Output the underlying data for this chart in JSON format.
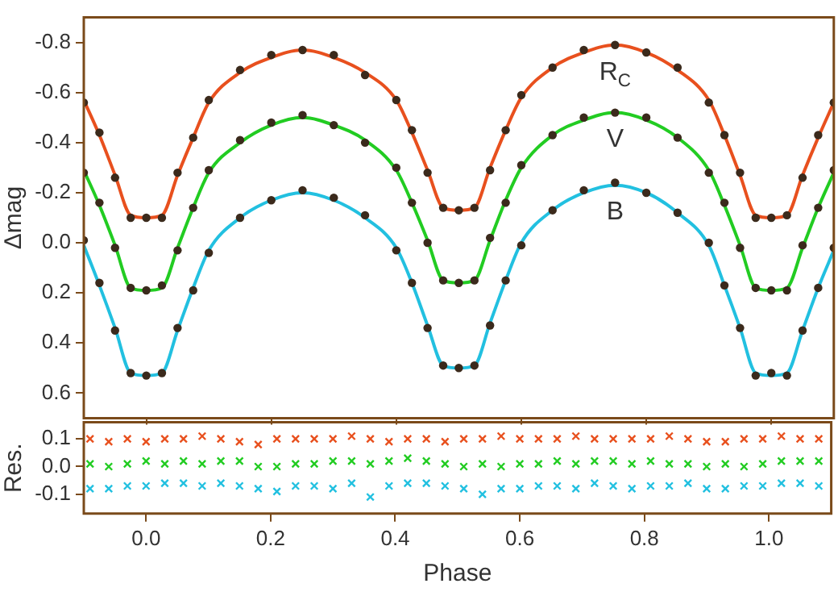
{
  "chart_data": [
    {
      "type": "line",
      "ylabel": "Δmag",
      "tick_labels": "y",
      "x": [
        -0.1,
        -0.075,
        -0.05,
        -0.025,
        0,
        0.025,
        0.05,
        0.075,
        0.1,
        0.15,
        0.2,
        0.25,
        0.3,
        0.35,
        0.4,
        0.425,
        0.45,
        0.475,
        0.5,
        0.525,
        0.55,
        0.575,
        0.6,
        0.65,
        0.7,
        0.75,
        0.8,
        0.85,
        0.9,
        0.925,
        0.95,
        0.975,
        1,
        1.025,
        1.05,
        1.075,
        1.1
      ],
      "xlim": [
        -0.1,
        1.1
      ],
      "xticks": [
        0,
        0.2,
        0.4,
        0.6,
        0.8,
        1
      ],
      "ylim": [
        0.7,
        -0.9
      ],
      "yticks": [
        -0.8,
        -0.6,
        -0.4,
        -0.2,
        {
          "value": 0,
          "label": "0.0"
        },
        0.2,
        0.4,
        0.6
      ],
      "series": [
        {
          "type": "scatter",
          "marker": "circle",
          "color": "#3b2a1c",
          "values": [
            -0.56,
            -0.44,
            -0.26,
            -0.1,
            -0.1,
            -0.1,
            -0.28,
            -0.42,
            -0.57,
            -0.69,
            -0.75,
            -0.77,
            -0.75,
            -0.67,
            -0.57,
            -0.45,
            -0.28,
            -0.14,
            -0.13,
            -0.14,
            -0.29,
            -0.45,
            -0.59,
            -0.7,
            -0.77,
            -0.79,
            -0.76,
            -0.7,
            -0.56,
            -0.43,
            -0.28,
            -0.1,
            -0.1,
            -0.11,
            -0.26,
            -0.43,
            -0.56
          ]
        },
        {
          "type": "scatter",
          "marker": "circle",
          "color": "#3b2a1c",
          "values": [
            -0.28,
            -0.16,
            0.02,
            0.18,
            0.19,
            0.17,
            0.03,
            -0.14,
            -0.29,
            -0.41,
            -0.48,
            -0.51,
            -0.47,
            -0.4,
            -0.3,
            -0.16,
            0.0,
            0.15,
            0.16,
            0.15,
            -0.02,
            -0.16,
            -0.31,
            -0.43,
            -0.5,
            -0.52,
            -0.5,
            -0.42,
            -0.28,
            -0.16,
            0.02,
            0.18,
            0.19,
            0.19,
            0.01,
            -0.14,
            -0.29
          ]
        },
        {
          "type": "scatter",
          "marker": "circle",
          "color": "#3b2a1c",
          "values": [
            -0.01,
            0.16,
            0.35,
            0.52,
            0.53,
            0.52,
            0.34,
            0.19,
            0.04,
            -0.1,
            -0.17,
            -0.21,
            -0.18,
            -0.11,
            0.03,
            0.16,
            0.34,
            0.49,
            0.5,
            0.49,
            0.33,
            0.15,
            0.01,
            -0.13,
            -0.21,
            -0.24,
            -0.2,
            -0.12,
            0.0,
            0.17,
            0.34,
            0.53,
            0.52,
            0.53,
            0.35,
            0.18,
            0.02
          ]
        },
        {
          "type": "line",
          "name": "R$_{C}$",
          "color": "#e8501e",
          "values": [
            -0.57,
            -0.43,
            -0.27,
            -0.11,
            -0.1,
            -0.11,
            -0.27,
            -0.42,
            -0.56,
            -0.68,
            -0.74,
            -0.77,
            -0.74,
            -0.68,
            -0.57,
            -0.44,
            -0.29,
            -0.14,
            -0.13,
            -0.14,
            -0.3,
            -0.45,
            -0.58,
            -0.7,
            -0.76,
            -0.79,
            -0.76,
            -0.69,
            -0.57,
            -0.43,
            -0.27,
            -0.11,
            -0.1,
            -0.11,
            -0.27,
            -0.42,
            -0.56
          ]
        },
        {
          "type": "line",
          "name": "V",
          "color": "#22cc22",
          "values": [
            -0.29,
            -0.15,
            0.01,
            0.18,
            0.19,
            0.18,
            0.02,
            -0.14,
            -0.28,
            -0.4,
            -0.47,
            -0.5,
            -0.47,
            -0.41,
            -0.29,
            -0.16,
            -0.01,
            0.15,
            0.16,
            0.15,
            -0.01,
            -0.17,
            -0.3,
            -0.43,
            -0.49,
            -0.52,
            -0.49,
            -0.42,
            -0.29,
            -0.15,
            0.01,
            0.18,
            0.19,
            0.18,
            0.02,
            -0.14,
            -0.28
          ]
        },
        {
          "type": "line",
          "name": "B",
          "color": "#22c0e0",
          "values": [
            0.01,
            0.17,
            0.34,
            0.52,
            0.53,
            0.52,
            0.35,
            0.18,
            0.03,
            -0.1,
            -0.17,
            -0.2,
            -0.17,
            -0.1,
            0.02,
            0.16,
            0.33,
            0.49,
            0.5,
            0.49,
            0.32,
            0.15,
            0.0,
            -0.13,
            -0.2,
            -0.23,
            -0.2,
            -0.12,
            0.01,
            0.17,
            0.34,
            0.52,
            0.53,
            0.52,
            0.35,
            0.18,
            0.03
          ]
        }
      ]
    },
    {
      "type": "scatter",
      "marker": "cross",
      "xlabel": "Phase",
      "ylabel": "Res.",
      "x": [
        -0.09,
        -0.06,
        -0.03,
        0,
        0.03,
        0.06,
        0.09,
        0.12,
        0.15,
        0.18,
        0.21,
        0.24,
        0.27,
        0.3,
        0.33,
        0.36,
        0.39,
        0.42,
        0.45,
        0.48,
        0.51,
        0.54,
        0.57,
        0.6,
        0.63,
        0.66,
        0.69,
        0.72,
        0.75,
        0.78,
        0.81,
        0.84,
        0.87,
        0.9,
        0.93,
        0.96,
        0.99,
        1.02,
        1.05,
        1.08
      ],
      "xlim": [
        -0.1,
        1.1
      ],
      "xticks": [
        {
          "value": 0,
          "label": "0.0"
        },
        0.2,
        0.4,
        0.6,
        0.8,
        {
          "value": 1,
          "label": "1.0"
        }
      ],
      "ylim": [
        -0.17,
        0.16
      ],
      "yticks": [
        -0.1,
        {
          "value": 0,
          "label": "0.0"
        },
        0.1
      ],
      "series": [
        {
          "color": "#e8501e",
          "values": [
            0.1,
            0.09,
            0.1,
            0.09,
            0.1,
            0.1,
            0.11,
            0.1,
            0.09,
            0.08,
            0.1,
            0.1,
            0.1,
            0.1,
            0.11,
            0.1,
            0.09,
            0.1,
            0.1,
            0.09,
            0.1,
            0.1,
            0.11,
            0.1,
            0.1,
            0.1,
            0.11,
            0.1,
            0.1,
            0.1,
            0.1,
            0.11,
            0.1,
            0.09,
            0.09,
            0.1,
            0.1,
            0.11,
            0.1,
            0.1
          ]
        },
        {
          "color": "#22cc22",
          "values": [
            0.01,
            0.0,
            0.01,
            0.02,
            0.01,
            0.02,
            0.01,
            0.02,
            0.02,
            0.0,
            0.0,
            0.01,
            0.01,
            0.02,
            0.02,
            0.01,
            0.02,
            0.03,
            0.02,
            0.01,
            0.0,
            0.01,
            0.0,
            0.01,
            0.01,
            0.02,
            0.01,
            0.02,
            0.02,
            0.01,
            0.02,
            0.01,
            0.01,
            0.0,
            0.01,
            0.0,
            0.01,
            0.02,
            0.02,
            0.02
          ]
        },
        {
          "color": "#22c0e0",
          "values": [
            -0.08,
            -0.08,
            -0.07,
            -0.07,
            -0.06,
            -0.06,
            -0.07,
            -0.06,
            -0.07,
            -0.08,
            -0.09,
            -0.07,
            -0.07,
            -0.08,
            -0.06,
            -0.11,
            -0.07,
            -0.06,
            -0.06,
            -0.07,
            -0.08,
            -0.1,
            -0.08,
            -0.08,
            -0.07,
            -0.07,
            -0.08,
            -0.06,
            -0.07,
            -0.08,
            -0.07,
            -0.07,
            -0.06,
            -0.08,
            -0.08,
            -0.07,
            -0.07,
            -0.06,
            -0.06,
            -0.07
          ]
        }
      ]
    }
  ]
}
